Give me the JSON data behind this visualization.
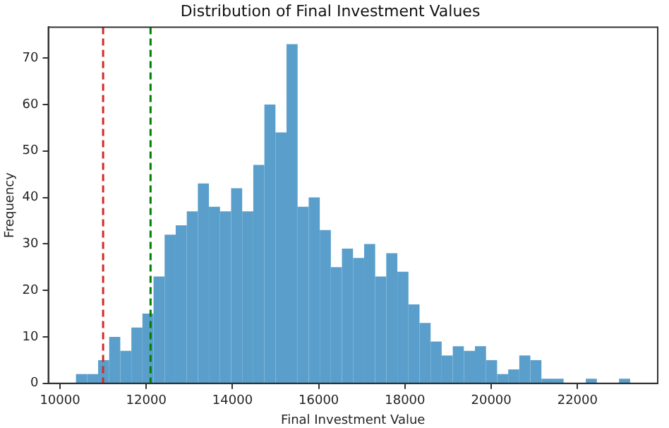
{
  "chart_data": {
    "type": "histogram",
    "title": "Distribution of Final Investment Values",
    "xlabel": "Final Investment Value",
    "ylabel": "Frequency",
    "bins": [
      10370,
      10627,
      10884,
      11141,
      11398,
      11655,
      11912,
      12169,
      12426,
      12683,
      12940,
      13197,
      13454,
      13711,
      13968,
      14225,
      14482,
      14739,
      14996,
      15253,
      15510,
      15767,
      16024,
      16281,
      16538,
      16795,
      17052,
      17309,
      17566,
      17823,
      18080,
      18337,
      18594,
      18851,
      19108,
      19365,
      19622,
      19879,
      20136,
      20393,
      20650,
      20907,
      21164,
      21421,
      21678,
      21935,
      22192,
      22449,
      22706,
      22963,
      23220
    ],
    "values": [
      2,
      2,
      5,
      10,
      7,
      12,
      15,
      23,
      32,
      34,
      37,
      43,
      38,
      37,
      42,
      37,
      47,
      60,
      54,
      73,
      38,
      40,
      33,
      25,
      29,
      27,
      30,
      23,
      28,
      24,
      17,
      13,
      9,
      6,
      8,
      7,
      8,
      5,
      2,
      3,
      6,
      5,
      1,
      1,
      0,
      0,
      1,
      0,
      0,
      1
    ],
    "color": "#5a9fcb",
    "xlim": [
      9730,
      23860
    ],
    "xticks": [
      10000,
      12000,
      14000,
      16000,
      18000,
      20000,
      22000
    ],
    "ylim": [
      0,
      76.65
    ],
    "yticks": [
      0,
      10,
      20,
      30,
      40,
      50,
      60,
      70
    ],
    "ref_lines": [
      {
        "axis": "x",
        "value": 11000,
        "color": "#d62728",
        "line_style": "dashed"
      },
      {
        "axis": "x",
        "value": 12100,
        "color": "#008000",
        "line_style": "dashed"
      }
    ],
    "grid": false,
    "legend": false
  }
}
